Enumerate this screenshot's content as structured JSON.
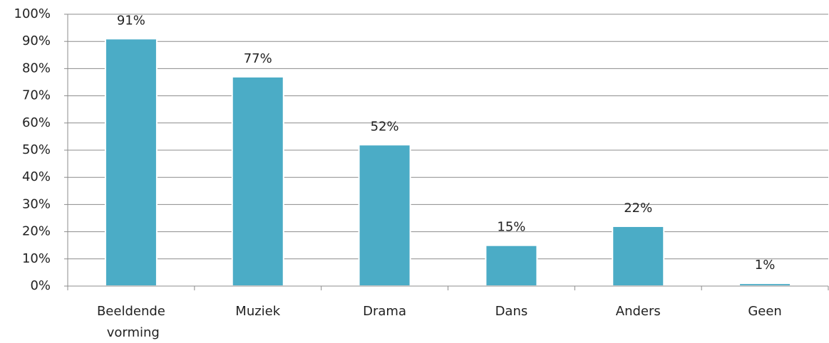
{
  "chart_data": {
    "type": "bar",
    "categories": [
      "Beeldende vorming",
      "Muziek",
      "Drama",
      "Dans",
      "Anders",
      "Geen"
    ],
    "values": [
      91,
      77,
      52,
      15,
      22,
      1
    ],
    "value_labels": [
      "91%",
      "77%",
      "52%",
      "15%",
      "22%",
      "1%"
    ],
    "color": "#4bacc6",
    "ylim": [
      0,
      100
    ],
    "yticks": [
      {
        "value": 0,
        "label": "0%"
      },
      {
        "value": 10,
        "label": "10%"
      },
      {
        "value": 20,
        "label": "20%"
      },
      {
        "value": 30,
        "label": "30%"
      },
      {
        "value": 40,
        "label": "40%"
      },
      {
        "value": 50,
        "label": "50%"
      },
      {
        "value": 60,
        "label": "60%"
      },
      {
        "value": 70,
        "label": "70%"
      },
      {
        "value": 80,
        "label": "80%"
      },
      {
        "value": 90,
        "label": "90%"
      },
      {
        "value": 100,
        "label": "100%"
      }
    ],
    "grid": true
  }
}
